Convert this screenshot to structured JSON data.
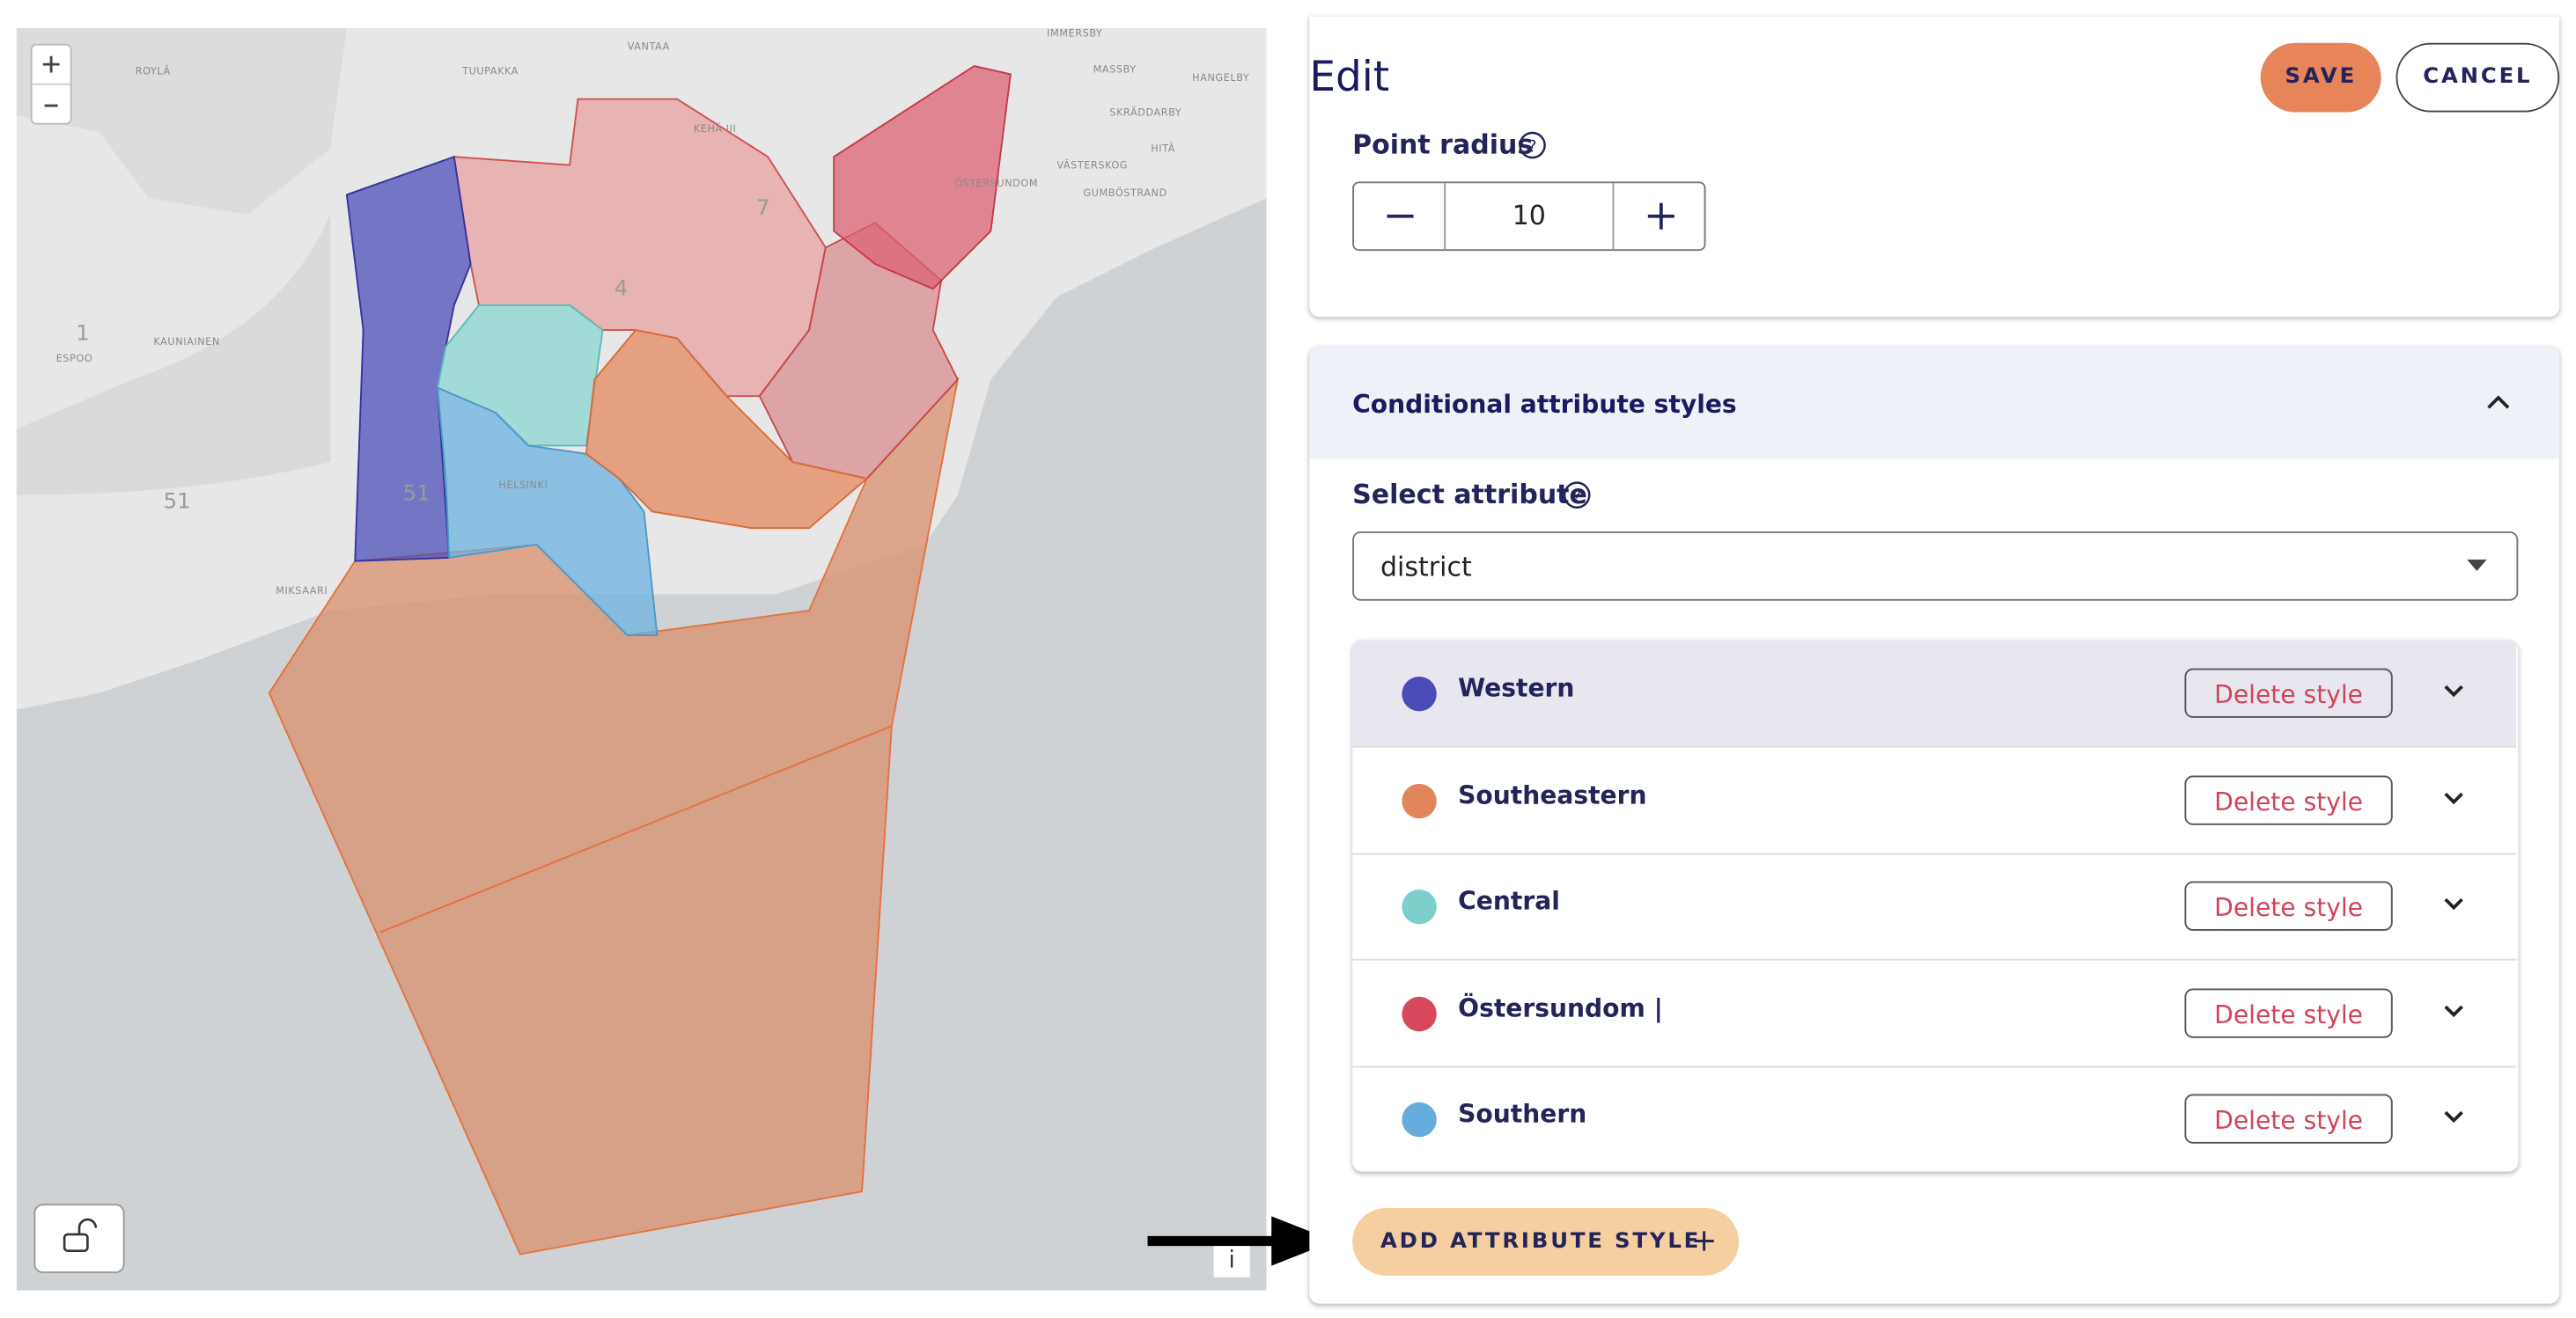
{
  "map": {
    "place_labels": [
      "ROYLÄ",
      "TUUPAKKA",
      "VANTAA",
      "IMMERSBY",
      "MASSBY",
      "HANGELBY",
      "SKRÄDDARBY",
      "VÄSTERSKOG",
      "HITÄ",
      "ÖSTERSUNDOM",
      "GUMBÖSTRAND",
      "KEHÄ III",
      "ESPOO",
      "KAUNIAINEN",
      "HELSINKI",
      "MIKSAARI"
    ],
    "road_labels": [
      "1",
      "51",
      "51",
      "7",
      "4"
    ],
    "info_button": "i"
  },
  "header": {
    "title": "Edit",
    "save": "SAVE",
    "cancel": "CANCEL"
  },
  "point_radius": {
    "label": "Point radius",
    "value": 10
  },
  "conditional_styles": {
    "title": "Conditional attribute styles",
    "select_label": "Select attribute",
    "selected": "district",
    "styles": [
      {
        "name": "Western",
        "color": "#4a4ab8",
        "action": "Delete style"
      },
      {
        "name": "Southeastern",
        "color": "#e3855a",
        "action": "Delete style"
      },
      {
        "name": "Central",
        "color": "#7dcfcc",
        "action": "Delete style"
      },
      {
        "name": "Östersundom |",
        "color": "#d6485c",
        "action": "Delete style"
      },
      {
        "name": "Southern",
        "color": "#63acdc",
        "action": "Delete style"
      }
    ],
    "add_button": "ADD ATTRIBUTE STYLE"
  }
}
